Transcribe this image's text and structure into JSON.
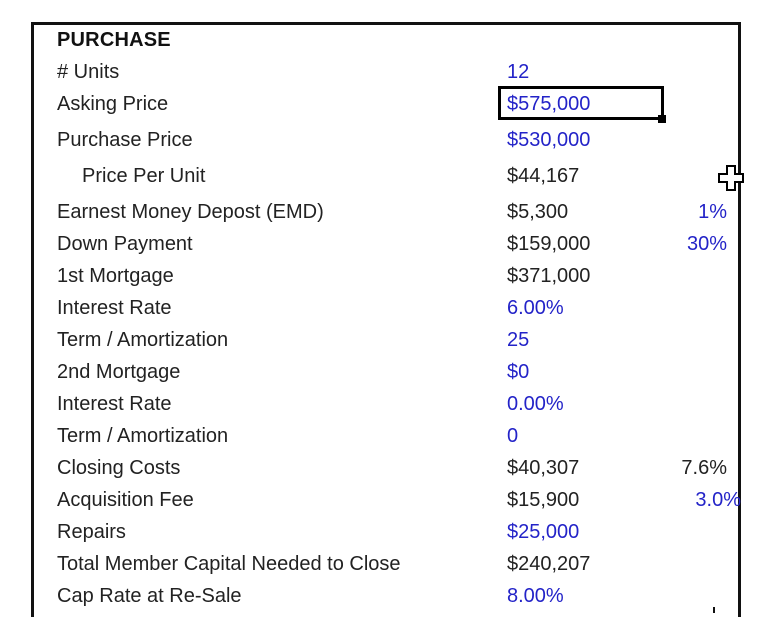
{
  "section_title": "PURCHASE",
  "rows": [
    {
      "label": "# Units",
      "value": "12",
      "value_color": "blue",
      "pct": ""
    },
    {
      "label": "Asking Price",
      "value": "$575,000",
      "value_color": "blue",
      "pct": ""
    },
    {
      "label": "Purchase Price",
      "value": "$530,000",
      "value_color": "blue",
      "pct": ""
    },
    {
      "label": "Price Per Unit",
      "value": "$44,167",
      "value_color": "black",
      "pct": ""
    },
    {
      "label": "Earnest Money Depost (EMD)",
      "value": "$5,300",
      "value_color": "black",
      "pct": "1%",
      "pct_color": "blue"
    },
    {
      "label": "Down Payment",
      "value": "$159,000",
      "value_color": "black",
      "pct": "30%",
      "pct_color": "blue"
    },
    {
      "label": "1st Mortgage",
      "value": "$371,000",
      "value_color": "black",
      "pct": ""
    },
    {
      "label": "Interest Rate",
      "value": "6.00%",
      "value_color": "blue",
      "pct": ""
    },
    {
      "label": "Term / Amortization",
      "value": "25",
      "value_color": "blue",
      "pct": ""
    },
    {
      "label": "2nd Mortgage",
      "value": "$0",
      "value_color": "blue",
      "pct": ""
    },
    {
      "label": "Interest Rate",
      "value": "0.00%",
      "value_color": "blue",
      "pct": ""
    },
    {
      "label": "Term / Amortization",
      "value": "0",
      "value_color": "blue",
      "pct": ""
    },
    {
      "label": "Closing Costs",
      "value": "$40,307",
      "value_color": "black",
      "pct": "7.6%",
      "pct_color": "black"
    },
    {
      "label": "Acquisition Fee",
      "value": "$15,900",
      "value_color": "black",
      "pct": "3.0%",
      "pct_color": "blue"
    },
    {
      "label": "Repairs",
      "value": "$25,000",
      "value_color": "blue",
      "pct": ""
    },
    {
      "label": "Total Member Capital Needed to Close",
      "value": "$240,207",
      "value_color": "black",
      "pct": ""
    },
    {
      "label": "Cap Rate at Re-Sale",
      "value": "8.00%",
      "value_color": "blue",
      "pct": ""
    }
  ],
  "colors": {
    "input_blue": "#2323c8",
    "text_black": "#222222",
    "border": "#111111"
  },
  "cursor_icon": "cell-select-cross-icon"
}
